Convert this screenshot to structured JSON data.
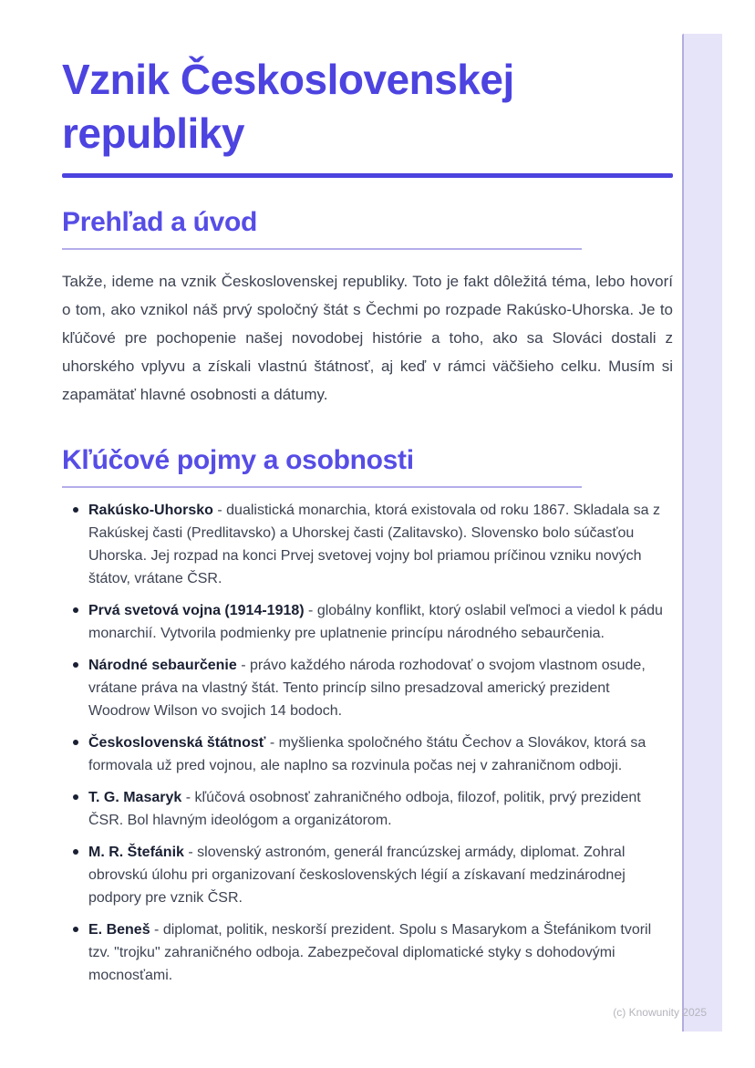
{
  "page": {
    "title": "Vznik Československej republiky",
    "watermark": "(c) Knowunity 2025"
  },
  "theme": {
    "accent": "#4c43e0",
    "heading": "#564de6",
    "divider": "#b3aeea",
    "body_text": "#3d4352",
    "term_text": "#1a2033",
    "page_edge_fill": "#e6e4f9",
    "page_edge_border": "#b2aede",
    "watermark_color": "#b5b4bc"
  },
  "sections": [
    {
      "heading": "Prehľad a úvod",
      "paragraph": "Takže, ideme na vznik Československej republiky. Toto je fakt dôležitá téma, lebo hovorí o tom, ako vznikol náš prvý spoločný štát s Čechmi po rozpade Rakúsko-Uhorska. Je to kľúčové pre pochopenie našej novodobej histórie a toho, ako sa Slováci dostali z uhorského vplyvu a získali vlastnú štátnosť, aj keď v rámci väčšieho celku. Musím si zapamätať hlavné osobnosti a dátumy."
    },
    {
      "heading": "Kľúčové pojmy a osobnosti",
      "terms": [
        {
          "term": "Rakúsko-Uhorsko",
          "description": "- dualistická monarchia, ktorá existovala od roku 1867. Skladala sa z Rakúskej časti (Predlitavsko) a Uhorskej časti (Zalitavsko). Slovensko bolo súčasťou Uhorska. Jej rozpad na konci Prvej svetovej vojny bol priamou príčinou vzniku nových štátov, vrátane ČSR."
        },
        {
          "term": "Prvá svetová vojna (1914-1918)",
          "description": "- globálny konflikt, ktorý oslabil veľmoci a viedol k pádu monarchií. Vytvorila podmienky pre uplatnenie princípu národného sebaurčenia."
        },
        {
          "term": "Národné sebaurčenie",
          "description": "- právo každého národa rozhodovať o svojom vlastnom osude, vrátane práva na vlastný štát. Tento princíp silno presadzoval americký prezident Woodrow Wilson vo svojich 14 bodoch."
        },
        {
          "term": "Československá štátnosť",
          "description": "- myšlienka spoločného štátu Čechov a Slovákov, ktorá sa formovala už pred vojnou, ale naplno sa rozvinula počas nej v zahraničnom odboji."
        },
        {
          "term": "T. G. Masaryk",
          "description": "- kľúčová osobnosť zahraničného odboja, filozof, politik, prvý prezident ČSR. Bol hlavným ideológom a organizátorom."
        },
        {
          "term": "M. R. Štefánik",
          "description": "- slovenský astronóm, generál francúzskej armády, diplomat. Zohral obrovskú úlohu pri organizovaní československých légií a získavaní medzinárodnej podpory pre vznik ČSR."
        },
        {
          "term": "E. Beneš",
          "description": "- diplomat, politik, neskorší prezident. Spolu s Masarykom a Štefánikom tvoril tzv. \"trojku\" zahraničného odboja. Zabezpečoval diplomatické styky s dohodovými mocnosťami."
        }
      ]
    }
  ]
}
